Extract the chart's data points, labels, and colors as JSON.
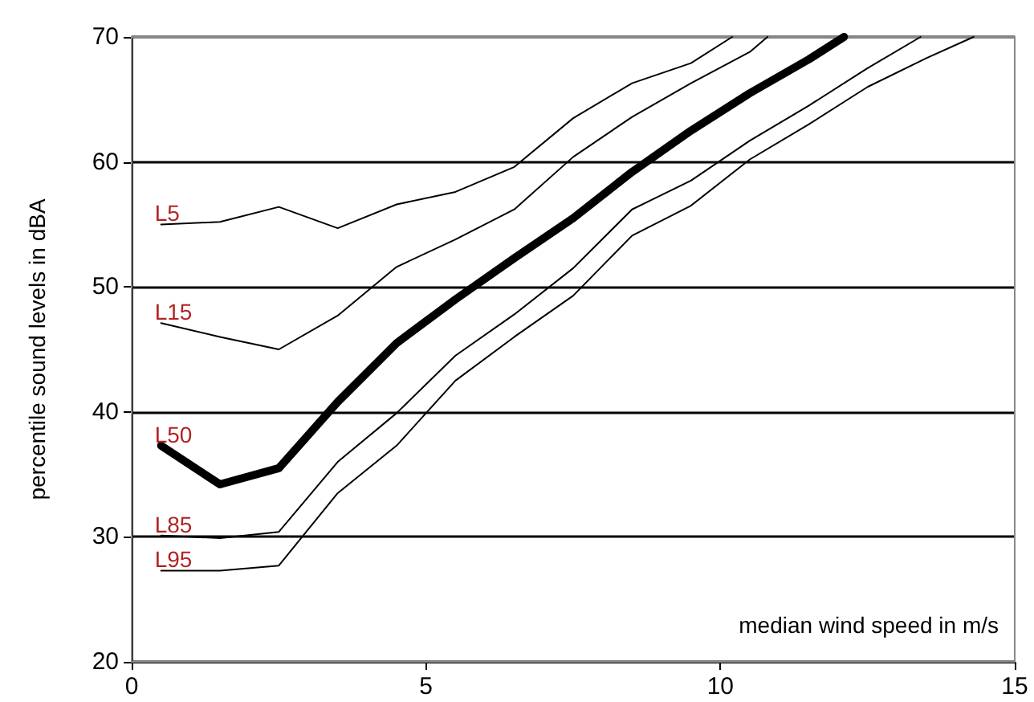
{
  "chart_data": {
    "type": "line",
    "xlabel": "median wind speed in m/s",
    "ylabel": "percentile sound levels in dBA",
    "xlim": [
      0,
      15
    ],
    "xticks": [
      0,
      5,
      10,
      15
    ],
    "ylim": [
      20,
      70
    ],
    "yticks": [
      20,
      30,
      40,
      50,
      60,
      70
    ],
    "grid": "y",
    "marker": "none",
    "line_style": "solid",
    "series": [
      {
        "name": "L5",
        "color": "#000000",
        "x": [
          0.5,
          1.5,
          2.5,
          3.5,
          4.5,
          5.5,
          6.5,
          7.5,
          8.5,
          9.5,
          10.2
        ],
        "values": [
          55,
          55.2,
          56.4,
          54.7,
          56.6,
          57.6,
          59.6,
          63.5,
          66.3,
          67.9,
          70
        ]
      },
      {
        "name": "L15",
        "color": "#000000",
        "x": [
          0.5,
          1.5,
          2.5,
          3.5,
          4.5,
          5.5,
          6.5,
          7.5,
          8.5,
          9.5,
          10.5,
          10.8
        ],
        "values": [
          47.1,
          46,
          45,
          47.7,
          51.6,
          53.8,
          56.2,
          60.4,
          63.6,
          66.3,
          68.8,
          70
        ]
      },
      {
        "name": "L50",
        "color": "#000000",
        "x": [
          0.5,
          1.5,
          2.5,
          3.5,
          4.5,
          5.5,
          6.5,
          7.5,
          8.5,
          9.5,
          10.5,
          11.5,
          12.1
        ],
        "values": [
          37.3,
          34.2,
          35.5,
          40.8,
          45.5,
          49,
          52.3,
          55.5,
          59.2,
          62.5,
          65.5,
          68.2,
          70
        ]
      },
      {
        "name": "L85",
        "color": "#000000",
        "x": [
          0.5,
          1.5,
          2.5,
          3.5,
          4.5,
          5.5,
          6.5,
          7.5,
          8.5,
          9.5,
          10.5,
          11.5,
          12.5,
          13.4
        ],
        "values": [
          30.1,
          29.9,
          30.4,
          36,
          39.9,
          44.5,
          47.8,
          51.5,
          56.2,
          58.5,
          61.7,
          64.5,
          67.5,
          70
        ]
      },
      {
        "name": "L95",
        "color": "#000000",
        "x": [
          0.5,
          1.5,
          2.5,
          3.5,
          4.5,
          5.5,
          6.5,
          7.5,
          8.5,
          9.5,
          10.5,
          11.5,
          12.5,
          13.5,
          14.3
        ],
        "values": [
          27.3,
          27.3,
          27.7,
          33.5,
          37.3,
          42.5,
          46,
          49.3,
          54.1,
          56.5,
          60.2,
          63,
          66,
          68.3,
          70
        ]
      }
    ]
  }
}
